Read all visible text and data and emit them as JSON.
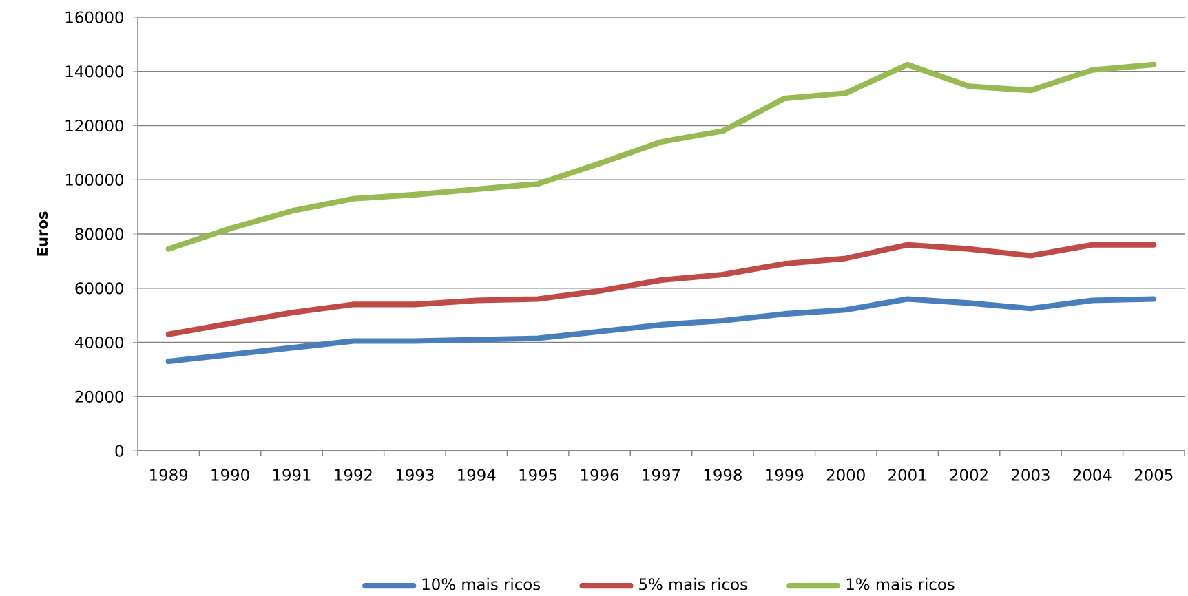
{
  "chart_data": {
    "type": "line",
    "ylabel": "Euros",
    "categories": [
      "1989",
      "1990",
      "1991",
      "1992",
      "1993",
      "1994",
      "1995",
      "1996",
      "1997",
      "1998",
      "1999",
      "2000",
      "2001",
      "2002",
      "2003",
      "2004",
      "2005"
    ],
    "series": [
      {
        "name": "10% mais ricos",
        "color": "#4a7ebb",
        "values": [
          33000,
          35500,
          38000,
          40500,
          40500,
          41000,
          41500,
          44000,
          46500,
          48000,
          50500,
          52000,
          56000,
          54500,
          52500,
          55500,
          56000
        ]
      },
      {
        "name": "5% mais ricos",
        "color": "#be4b48",
        "values": [
          43000,
          47000,
          51000,
          54000,
          54000,
          55500,
          56000,
          59000,
          63000,
          65000,
          69000,
          71000,
          76000,
          74500,
          72000,
          76000,
          76000
        ]
      },
      {
        "name": "1% mais ricos",
        "color": "#98b954",
        "values": [
          74500,
          82000,
          88500,
          93000,
          94500,
          96500,
          98500,
          106000,
          114000,
          118000,
          130000,
          132000,
          142500,
          134500,
          133000,
          140500,
          142500
        ]
      }
    ],
    "ylim": [
      0,
      160000
    ],
    "yticks": [
      0,
      20000,
      40000,
      60000,
      80000,
      100000,
      120000,
      140000,
      160000
    ],
    "grid": "y",
    "legend": "bottom",
    "marker": "none",
    "line_style": "solid"
  }
}
